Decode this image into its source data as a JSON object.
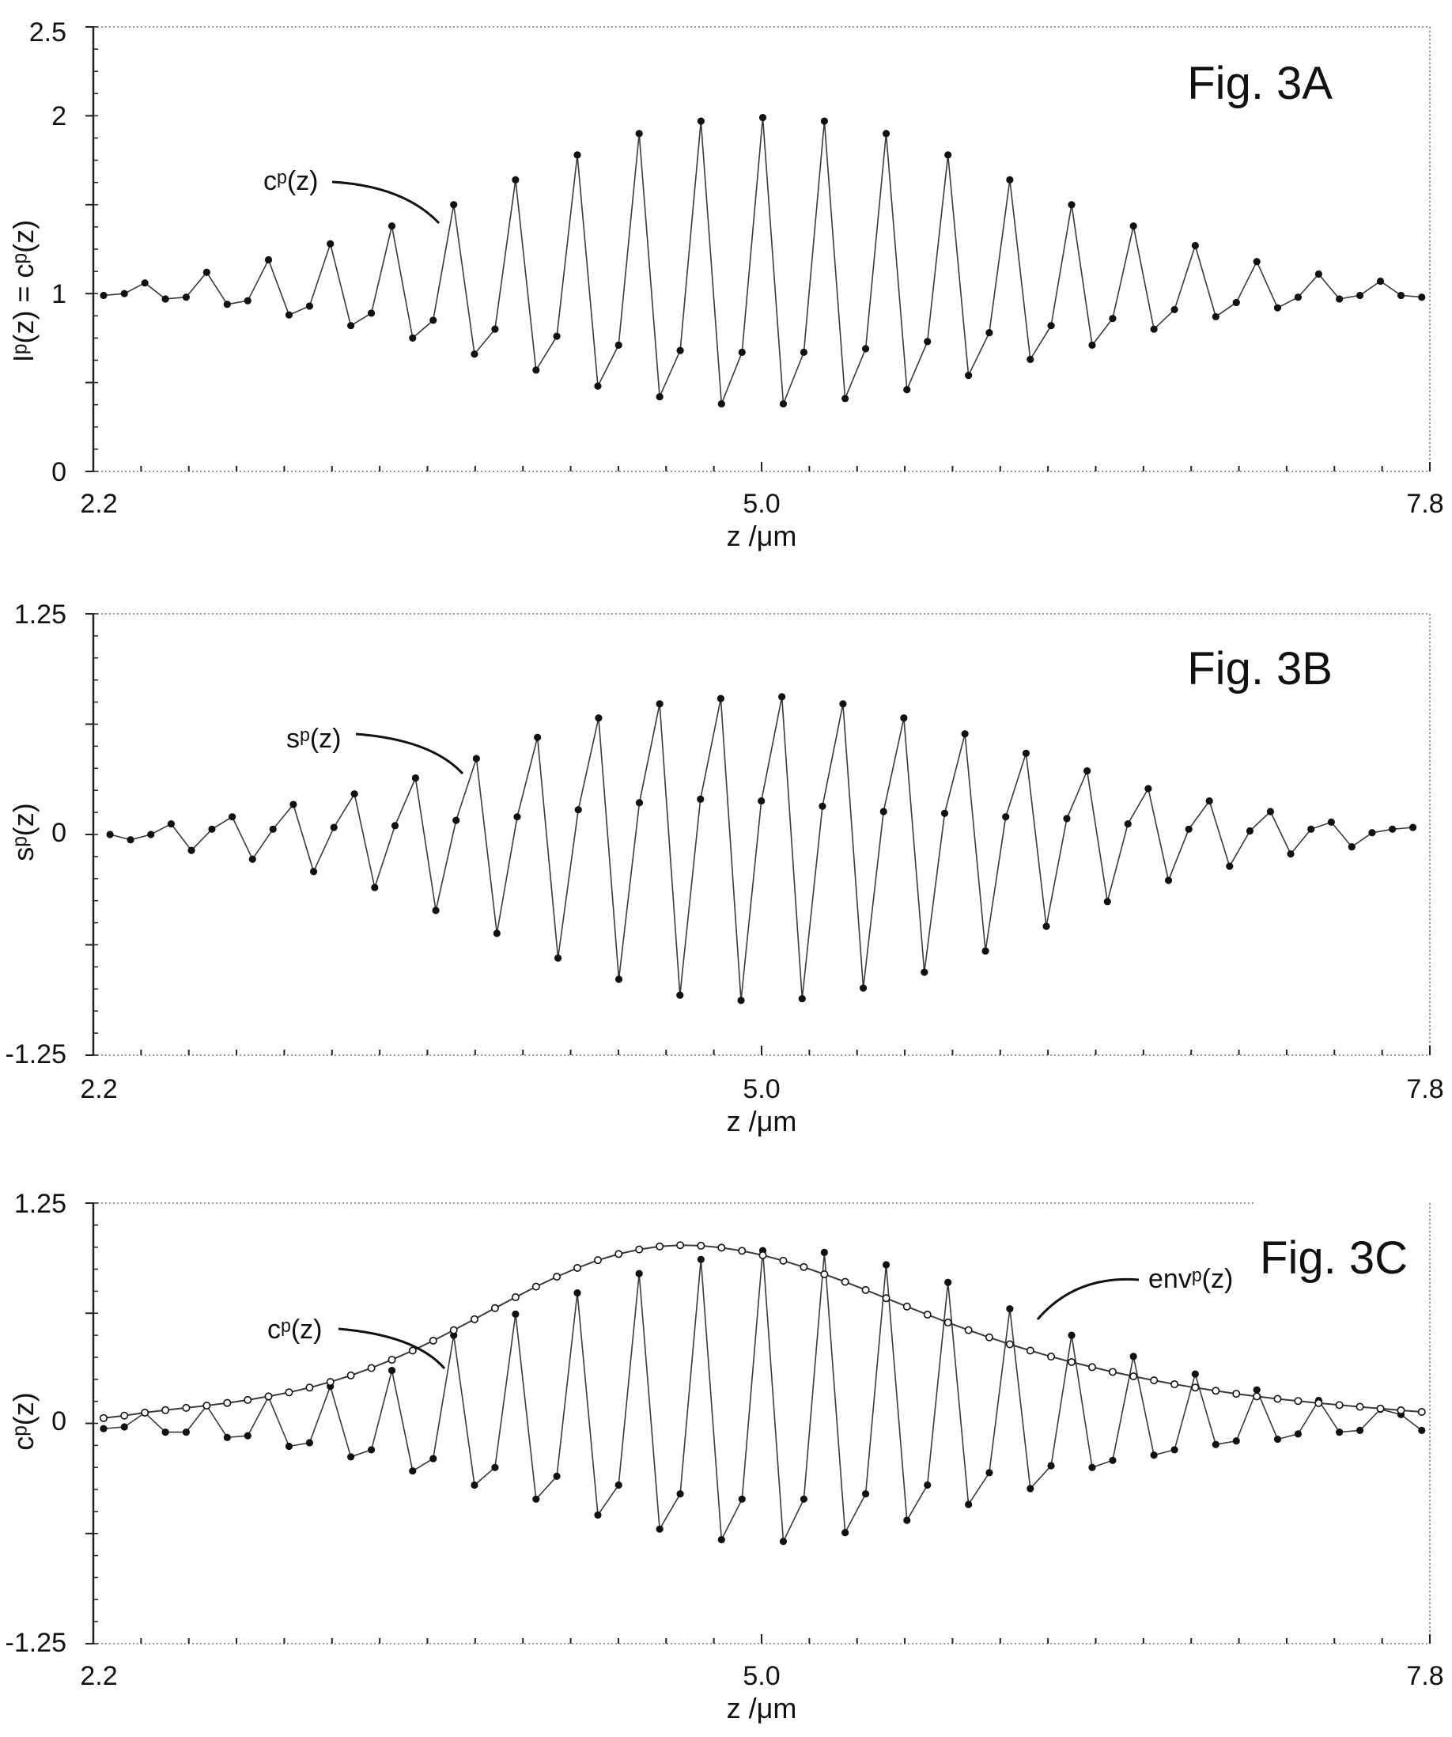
{
  "chart_data": [
    {
      "type": "line",
      "figure_label": "Fig. 3A",
      "ylabel": "Iᵖ(z) = cᵖ(z)",
      "xlabel": "z /μm",
      "xlim": [
        2.2,
        7.8
      ],
      "ylim": [
        0,
        2.5
      ],
      "x_tick_labels": [
        "2.2",
        "5.0",
        "7.8"
      ],
      "y_tick_labels": [
        "0",
        "1",
        "2",
        "2.5"
      ],
      "annotation": "cᵖ(z)",
      "grid": false,
      "series": [
        {
          "name": "cᵖ(z)",
          "x": [
            2.243,
            2.33,
            2.416,
            2.502,
            2.589,
            2.675,
            2.761,
            2.847,
            2.934,
            3.02,
            3.106,
            3.193,
            3.279,
            3.365,
            3.451,
            3.538,
            3.624,
            3.71,
            3.797,
            3.883,
            3.969,
            4.055,
            4.142,
            4.228,
            4.314,
            4.401,
            4.487,
            4.573,
            4.659,
            4.746,
            4.832,
            4.918,
            5.005,
            5.091,
            5.177,
            5.263,
            5.35,
            5.436,
            5.522,
            5.609,
            5.695,
            5.781,
            5.867,
            5.954,
            6.04,
            6.126,
            6.213,
            6.299,
            6.385,
            6.471,
            6.558,
            6.644,
            6.73,
            6.817,
            6.903,
            6.989,
            7.075,
            7.162,
            7.248,
            7.334,
            7.421,
            7.507,
            7.593,
            7.679,
            7.766
          ],
          "values": [
            0.99,
            1.0,
            1.06,
            0.97,
            0.98,
            1.12,
            0.94,
            0.96,
            1.19,
            0.88,
            0.93,
            1.28,
            0.82,
            0.89,
            1.38,
            0.75,
            0.85,
            1.5,
            0.66,
            0.8,
            1.64,
            0.57,
            0.76,
            1.78,
            0.48,
            0.71,
            1.9,
            0.42,
            0.68,
            1.97,
            0.38,
            0.67,
            1.99,
            0.38,
            0.67,
            1.97,
            0.41,
            0.69,
            1.9,
            0.46,
            0.73,
            1.78,
            0.54,
            0.78,
            1.64,
            0.63,
            0.82,
            1.5,
            0.71,
            0.86,
            1.38,
            0.8,
            0.91,
            1.27,
            0.87,
            0.95,
            1.18,
            0.92,
            0.98,
            1.11,
            0.97,
            0.99,
            1.07,
            0.99,
            0.98
          ]
        }
      ]
    },
    {
      "type": "line",
      "figure_label": "Fig. 3B",
      "ylabel": "sᵖ(z)",
      "xlabel": "z /μm",
      "xlim": [
        2.2,
        7.8
      ],
      "ylim": [
        -1.25,
        1.25
      ],
      "x_tick_labels": [
        "2.2",
        "5.0",
        "7.8"
      ],
      "y_tick_labels": [
        "-1.25",
        "0",
        "1.25"
      ],
      "annotation": "sᵖ(z)",
      "grid": false,
      "series": [
        {
          "name": "sᵖ(z)",
          "x": [
            2.27,
            2.356,
            2.441,
            2.526,
            2.611,
            2.697,
            2.782,
            2.867,
            2.953,
            3.038,
            3.123,
            3.208,
            3.294,
            3.379,
            3.464,
            3.55,
            3.635,
            3.72,
            3.805,
            3.891,
            3.976,
            4.061,
            4.147,
            4.232,
            4.317,
            4.402,
            4.488,
            4.573,
            4.658,
            4.744,
            4.829,
            4.914,
            4.999,
            5.085,
            5.17,
            5.255,
            5.341,
            5.426,
            5.511,
            5.596,
            5.682,
            5.767,
            5.852,
            5.938,
            6.023,
            6.108,
            6.193,
            6.279,
            6.364,
            6.449,
            6.535,
            6.62,
            6.705,
            6.79,
            6.876,
            6.961,
            7.046,
            7.132,
            7.217,
            7.302,
            7.387,
            7.473,
            7.558,
            7.643,
            7.729
          ],
          "values": [
            0.0,
            -0.03,
            0.0,
            0.06,
            -0.09,
            0.03,
            0.1,
            -0.14,
            0.03,
            0.17,
            -0.21,
            0.04,
            0.23,
            -0.3,
            0.05,
            0.32,
            -0.43,
            0.08,
            0.43,
            -0.56,
            0.1,
            0.55,
            -0.7,
            0.14,
            0.66,
            -0.82,
            0.18,
            0.74,
            -0.91,
            0.2,
            0.77,
            -0.94,
            0.19,
            0.78,
            -0.93,
            0.16,
            0.74,
            -0.87,
            0.13,
            0.66,
            -0.78,
            0.12,
            0.57,
            -0.66,
            0.1,
            0.46,
            -0.52,
            0.09,
            0.36,
            -0.38,
            0.06,
            0.26,
            -0.26,
            0.03,
            0.19,
            -0.18,
            0.02,
            0.13,
            -0.11,
            0.03,
            0.07,
            -0.07,
            0.01,
            0.03,
            0.04
          ]
        }
      ]
    },
    {
      "type": "line",
      "figure_label": "Fig. 3C",
      "ylabel": "cᵖ(z)",
      "xlabel": "z /μm",
      "xlim": [
        2.2,
        7.8
      ],
      "ylim": [
        -1.25,
        1.25
      ],
      "x_tick_labels": [
        "2.2",
        "5.0",
        "7.8"
      ],
      "y_tick_labels": [
        "-1.25",
        "0",
        "1.25"
      ],
      "annotations": [
        "cᵖ(z)",
        "envᵖ(z)"
      ],
      "grid": false,
      "series": [
        {
          "name": "cᵖ(z)",
          "x": [
            2.243,
            2.33,
            2.416,
            2.502,
            2.589,
            2.675,
            2.761,
            2.847,
            2.934,
            3.02,
            3.106,
            3.193,
            3.279,
            3.365,
            3.451,
            3.538,
            3.624,
            3.71,
            3.797,
            3.883,
            3.969,
            4.055,
            4.142,
            4.228,
            4.314,
            4.401,
            4.487,
            4.573,
            4.659,
            4.746,
            4.832,
            4.918,
            5.005,
            5.091,
            5.177,
            5.263,
            5.35,
            5.436,
            5.522,
            5.609,
            5.695,
            5.781,
            5.867,
            5.954,
            6.04,
            6.126,
            6.213,
            6.299,
            6.385,
            6.471,
            6.558,
            6.644,
            6.73,
            6.817,
            6.903,
            6.989,
            7.075,
            7.162,
            7.248,
            7.334,
            7.421,
            7.507,
            7.593,
            7.679,
            7.766
          ],
          "values": [
            -0.03,
            -0.02,
            0.06,
            -0.05,
            -0.05,
            0.1,
            -0.08,
            -0.07,
            0.15,
            -0.13,
            -0.11,
            0.21,
            -0.19,
            -0.15,
            0.3,
            -0.27,
            -0.2,
            0.5,
            -0.35,
            -0.25,
            0.62,
            -0.43,
            -0.3,
            0.74,
            -0.52,
            -0.35,
            0.85,
            -0.6,
            -0.4,
            0.93,
            -0.66,
            -0.43,
            0.98,
            -0.67,
            -0.43,
            0.97,
            -0.62,
            -0.4,
            0.9,
            -0.55,
            -0.35,
            0.8,
            -0.46,
            -0.28,
            0.65,
            -0.37,
            -0.24,
            0.5,
            -0.25,
            -0.21,
            0.38,
            -0.18,
            -0.15,
            0.28,
            -0.12,
            -0.1,
            0.19,
            -0.09,
            -0.06,
            0.13,
            -0.05,
            -0.04,
            0.08,
            0.05,
            -0.04
          ]
        },
        {
          "name": "envᵖ(z)",
          "x": [
            2.243,
            2.33,
            2.416,
            2.502,
            2.589,
            2.675,
            2.761,
            2.847,
            2.934,
            3.02,
            3.106,
            3.193,
            3.279,
            3.365,
            3.451,
            3.538,
            3.624,
            3.71,
            3.797,
            3.883,
            3.969,
            4.055,
            4.142,
            4.228,
            4.314,
            4.401,
            4.487,
            4.573,
            4.659,
            4.746,
            4.832,
            4.918,
            5.005,
            5.091,
            5.177,
            5.263,
            5.35,
            5.436,
            5.522,
            5.609,
            5.695,
            5.781,
            5.867,
            5.954,
            6.04,
            6.126,
            6.213,
            6.299,
            6.385,
            6.471,
            6.558,
            6.644,
            6.73,
            6.817,
            6.903,
            6.989,
            7.075,
            7.162,
            7.248,
            7.334,
            7.421,
            7.507,
            7.593,
            7.679,
            7.766
          ],
          "values": [
            0.03,
            0.044,
            0.061,
            0.075,
            0.088,
            0.101,
            0.116,
            0.133,
            0.153,
            0.176,
            0.203,
            0.235,
            0.272,
            0.314,
            0.361,
            0.413,
            0.469,
            0.529,
            0.591,
            0.654,
            0.716,
            0.776,
            0.832,
            0.882,
            0.926,
            0.961,
            0.987,
            1.004,
            1.011,
            1.008,
            0.997,
            0.979,
            0.954,
            0.923,
            0.887,
            0.846,
            0.803,
            0.757,
            0.71,
            0.663,
            0.617,
            0.572,
            0.529,
            0.488,
            0.449,
            0.413,
            0.379,
            0.348,
            0.319,
            0.292,
            0.267,
            0.244,
            0.222,
            0.203,
            0.185,
            0.168,
            0.153,
            0.139,
            0.127,
            0.115,
            0.104,
            0.094,
            0.084,
            0.074,
            0.065
          ]
        }
      ]
    }
  ],
  "colors": {
    "line": "#3a3a3a",
    "marker": "#111111",
    "axis": "#222222",
    "dotted_frame": "#999999"
  }
}
